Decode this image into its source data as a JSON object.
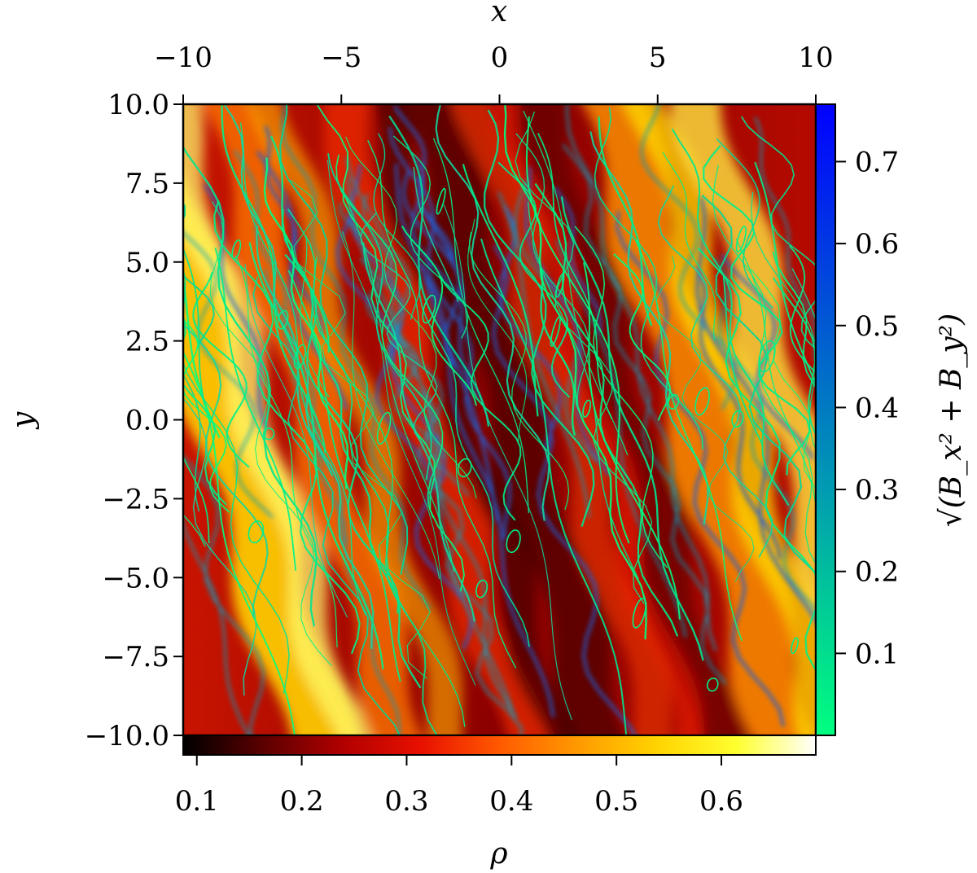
{
  "chart_data": {
    "type": "heatmap",
    "title": "",
    "x_axis": {
      "label": "x",
      "position": "top",
      "range": [
        -10,
        10
      ],
      "ticks": [
        -10,
        -5,
        0,
        5,
        10
      ],
      "tick_labels": [
        "−10",
        "−5",
        "0",
        "5",
        "10"
      ]
    },
    "y_axis": {
      "label": "y",
      "range": [
        -10,
        10
      ],
      "ticks": [
        10,
        7.5,
        5,
        2.5,
        0,
        -2.5,
        -5,
        -7.5,
        -10
      ],
      "tick_labels": [
        "10.0",
        "7.5",
        "5.0",
        "2.5",
        "0.0",
        "−2.5",
        "−5.0",
        "−7.5",
        "−10.0"
      ]
    },
    "density_colorbar": {
      "label": "ρ",
      "orientation": "horizontal",
      "placement": "bottom",
      "range": [
        0.087,
        0.69
      ],
      "ticks": [
        0.1,
        0.2,
        0.3,
        0.4,
        0.5,
        0.6
      ],
      "tick_labels": [
        "0.1",
        "0.2",
        "0.3",
        "0.4",
        "0.5",
        "0.6"
      ],
      "colormap": [
        "#000000",
        "#5a0000",
        "#b00000",
        "#e81000",
        "#ff5a00",
        "#ff9a00",
        "#ffd400",
        "#ffff30",
        "#ffffff"
      ]
    },
    "field_colorbar": {
      "label": "√(B_x² + B_y²)",
      "orientation": "vertical",
      "placement": "right",
      "range": [
        0.0,
        0.77
      ],
      "ticks": [
        0.1,
        0.2,
        0.3,
        0.4,
        0.5,
        0.6,
        0.7
      ],
      "tick_labels": [
        "0.1",
        "0.2",
        "0.3",
        "0.4",
        "0.5",
        "0.6",
        "0.7"
      ],
      "colormap": [
        "#00ff80",
        "#00cc96",
        "#0099b3",
        "#0066cc",
        "#0033e6",
        "#0000ff"
      ]
    },
    "description_layers": {
      "background": "density field rho, filamentary bands tilted from upper-left to lower-right",
      "overlay": "magnetic field streamlines colored by in-plane magnitude"
    }
  }
}
